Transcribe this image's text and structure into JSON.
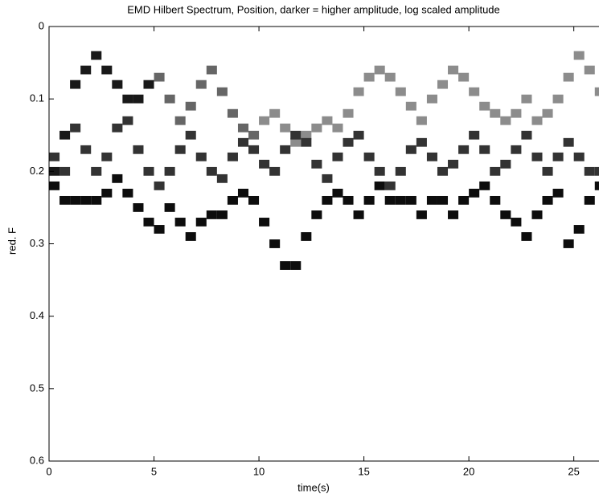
{
  "chart_data": {
    "type": "spectrum",
    "title": "EMD Hilbert Spectrum, Position, darker = higher amplitude, log scaled amplitude",
    "xlabel": "time(s)",
    "ylabel": "red. F",
    "xlim": [
      0,
      26.2
    ],
    "ylim": [
      0,
      0.6
    ],
    "y_inverted": true,
    "xticks": [
      0,
      5,
      10,
      15,
      20,
      25
    ],
    "yticks": [
      0,
      0.1,
      0.2,
      0.3,
      0.4,
      0.5,
      0.6
    ],
    "x": [
      0,
      0.5,
      1,
      1.5,
      2,
      2.5,
      3,
      3.5,
      4,
      4.5,
      5,
      5.5,
      6,
      6.5,
      7,
      7.5,
      8,
      8.5,
      9,
      9.5,
      10,
      10.5,
      11,
      11.5,
      12,
      12.5,
      13,
      13.5,
      14,
      14.5,
      15,
      15.5,
      16,
      16.5,
      17,
      17.5,
      18,
      18.5,
      19,
      19.5,
      20,
      20.5,
      21,
      21.5,
      22,
      22.5,
      23,
      23.5,
      24,
      24.5,
      25,
      25.5,
      26
    ],
    "series": [
      {
        "values": [
          0.2,
          0.15,
          0.08,
          0.06,
          0.04,
          0.06,
          0.08,
          0.1,
          0.1,
          0.08,
          0.07,
          0.1,
          0.13,
          0.11,
          0.08,
          0.06,
          0.09,
          0.12,
          0.14,
          0.15,
          0.13,
          0.12,
          0.14,
          0.16,
          0.15,
          0.14,
          0.13,
          0.14,
          0.12,
          0.09,
          0.07,
          0.06,
          0.07,
          0.09,
          0.11,
          0.13,
          0.1,
          0.08,
          0.06,
          0.07,
          0.09,
          0.11,
          0.12,
          0.13,
          0.12,
          0.1,
          0.13,
          0.12,
          0.1,
          0.07,
          0.04,
          0.06,
          0.09
        ],
        "intensity": [
          0.9,
          0.9,
          0.9,
          0.9,
          0.9,
          0.9,
          0.9,
          0.9,
          0.9,
          0.9,
          0.6,
          0.6,
          0.6,
          0.6,
          0.6,
          0.6,
          0.6,
          0.6,
          0.6,
          0.6,
          0.45,
          0.45,
          0.45,
          0.45,
          0.45,
          0.45,
          0.45,
          0.45,
          0.45,
          0.45,
          0.45,
          0.45,
          0.45,
          0.45,
          0.45,
          0.45,
          0.45,
          0.45,
          0.45,
          0.45,
          0.45,
          0.45,
          0.45,
          0.45,
          0.45,
          0.45,
          0.45,
          0.45,
          0.45,
          0.45,
          0.45,
          0.45,
          0.45
        ]
      },
      {
        "values": [
          0.18,
          0.2,
          0.14,
          0.17,
          0.2,
          0.18,
          0.14,
          0.13,
          0.17,
          0.2,
          0.22,
          0.2,
          0.17,
          0.15,
          0.18,
          0.2,
          0.21,
          0.18,
          0.16,
          0.17,
          0.19,
          0.2,
          0.17,
          0.15,
          0.16,
          0.19,
          0.21,
          0.18,
          0.16,
          0.15,
          0.18,
          0.2,
          0.22,
          0.2,
          0.17,
          0.16,
          0.18,
          0.2,
          0.19,
          0.17,
          0.15,
          0.17,
          0.2,
          0.19,
          0.17,
          0.15,
          0.18,
          0.2,
          0.18,
          0.16,
          0.18,
          0.2,
          0.2
        ],
        "intensity": 0.8
      },
      {
        "values": [
          0.22,
          0.24,
          0.24,
          0.24,
          0.24,
          0.23,
          0.21,
          0.23,
          0.25,
          0.27,
          0.28,
          0.25,
          0.27,
          0.29,
          0.27,
          0.26,
          0.26,
          0.24,
          0.23,
          0.24,
          0.27,
          0.3,
          0.33,
          0.33,
          0.29,
          0.26,
          0.24,
          0.23,
          0.24,
          0.26,
          0.24,
          0.22,
          0.24,
          0.24,
          0.24,
          0.26,
          0.24,
          0.24,
          0.26,
          0.24,
          0.23,
          0.22,
          0.24,
          0.26,
          0.27,
          0.29,
          0.26,
          0.24,
          0.23,
          0.3,
          0.28,
          0.24,
          0.22
        ],
        "intensity": 0.95
      }
    ]
  }
}
